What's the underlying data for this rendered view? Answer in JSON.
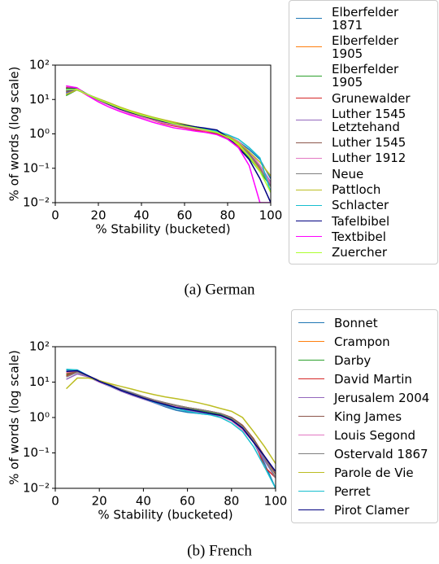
{
  "chart_data": [
    {
      "type": "line",
      "caption": "(a) German",
      "x_label": "% Stability (bucketed)",
      "y_label": "% of words (log scale)",
      "log_y": true,
      "xlim": [
        0,
        100
      ],
      "ylim": [
        0.01,
        100
      ],
      "xticks": [
        0,
        20,
        40,
        60,
        80,
        100
      ],
      "yticks": [
        {
          "value": 0.01,
          "label": "10⁻²"
        },
        {
          "value": 0.1,
          "label": "10⁻¹"
        },
        {
          "value": 1,
          "label": "10⁰"
        },
        {
          "value": 10,
          "label": "10¹"
        },
        {
          "value": 100,
          "label": "10²"
        }
      ],
      "x": [
        5,
        10,
        15,
        20,
        25,
        30,
        35,
        40,
        45,
        50,
        55,
        60,
        65,
        70,
        75,
        80,
        85,
        90,
        95,
        100
      ],
      "series": [
        {
          "name": "Elberfelder 1871",
          "color": "#1f77b4",
          "values": [
            16,
            20,
            14,
            10,
            7.8,
            5.8,
            4.5,
            3.6,
            3.0,
            2.5,
            2.1,
            1.8,
            1.6,
            1.4,
            1.2,
            0.9,
            0.6,
            0.35,
            0.18,
            0.05
          ]
        },
        {
          "name": "Elberfelder 1905",
          "color": "#ff7f0e",
          "values": [
            18,
            20,
            13,
            9.5,
            7,
            5.2,
            4,
            3.2,
            2.6,
            2.1,
            1.8,
            1.6,
            1.4,
            1.2,
            1.0,
            0.75,
            0.45,
            0.22,
            0.09,
            0.04
          ]
        },
        {
          "name": "Elberfelder 1905",
          "color": "#2ca02c",
          "values": [
            13,
            19,
            14,
            10,
            7.6,
            5.6,
            4.4,
            3.5,
            2.9,
            2.4,
            2.0,
            1.7,
            1.5,
            1.3,
            1.0,
            0.7,
            0.4,
            0.2,
            0.08,
            0.03
          ]
        },
        {
          "name": "Grunewalder",
          "color": "#d62728",
          "values": [
            22,
            21,
            14,
            9.5,
            7,
            5,
            3.9,
            3.1,
            2.5,
            2.0,
            1.7,
            1.5,
            1.3,
            1.1,
            1.0,
            0.8,
            0.55,
            0.3,
            0.12,
            0.03
          ]
        },
        {
          "name": "Luther 1545 Letztehand",
          "color": "#9467bd",
          "values": [
            15,
            19,
            14,
            10.5,
            8,
            6,
            4.6,
            3.7,
            3.0,
            2.5,
            2.1,
            1.8,
            1.6,
            1.4,
            1.2,
            0.9,
            0.6,
            0.3,
            0.12,
            0.04
          ]
        },
        {
          "name": "Luther 1545",
          "color": "#8c564b",
          "values": [
            17,
            20,
            14,
            10,
            7.7,
            5.7,
            4.5,
            3.6,
            2.9,
            2.4,
            2.1,
            1.8,
            1.6,
            1.4,
            1.2,
            0.85,
            0.55,
            0.28,
            0.11,
            0.03
          ]
        },
        {
          "name": "Luther 1912",
          "color": "#e377c2",
          "values": [
            24,
            22,
            14,
            9.5,
            6.8,
            5,
            3.8,
            3.1,
            2.5,
            2.1,
            1.8,
            1.6,
            1.4,
            1.25,
            1.1,
            0.9,
            0.6,
            0.3,
            0.12,
            0.035
          ]
        },
        {
          "name": "Neue",
          "color": "#7f7f7f",
          "values": [
            20,
            20,
            14,
            10,
            7.3,
            5.4,
            4.2,
            3.4,
            2.8,
            2.3,
            1.95,
            1.7,
            1.5,
            1.3,
            1.1,
            0.8,
            0.5,
            0.25,
            0.1,
            0.03
          ]
        },
        {
          "name": "Pattloch",
          "color": "#bcbd22",
          "values": [
            14,
            19,
            14,
            10.5,
            8,
            6,
            4.7,
            3.8,
            3.1,
            2.6,
            2.2,
            1.9,
            1.6,
            1.4,
            1.2,
            0.9,
            0.55,
            0.3,
            0.15,
            0.06
          ]
        },
        {
          "name": "Schlacter",
          "color": "#17becf",
          "values": [
            19,
            20,
            14,
            10,
            7.5,
            5.5,
            4.3,
            3.5,
            2.9,
            2.4,
            2.0,
            1.8,
            1.6,
            1.4,
            1.2,
            0.95,
            0.7,
            0.4,
            0.2,
            0.02
          ]
        },
        {
          "name": "Tafelbibel",
          "color": "#000080",
          "values": [
            21,
            21,
            14,
            9.8,
            7.2,
            5.3,
            4.2,
            3.4,
            2.8,
            2.3,
            2.0,
            1.8,
            1.6,
            1.45,
            1.3,
            0.8,
            0.4,
            0.18,
            0.05,
            0.01
          ]
        },
        {
          "name": "Textbibel",
          "color": "#ff00ff",
          "values": [
            25,
            22,
            13,
            8.5,
            6,
            4.5,
            3.5,
            2.8,
            2.2,
            1.8,
            1.5,
            1.35,
            1.2,
            1.1,
            0.95,
            0.7,
            0.4,
            0.12,
            0.01,
            0.01
          ]
        },
        {
          "name": "Zuercher",
          "color": "#adff2f",
          "values": [
            20,
            20,
            14,
            10,
            7.5,
            5.6,
            4.4,
            3.5,
            2.9,
            2.4,
            2.0,
            1.7,
            1.5,
            1.3,
            1.1,
            0.8,
            0.5,
            0.22,
            0.08,
            0.02
          ]
        }
      ]
    },
    {
      "type": "line",
      "caption": "(b) French",
      "x_label": "% Stability (bucketed)",
      "y_label": "% of words (log scale)",
      "log_y": true,
      "xlim": [
        0,
        100
      ],
      "ylim": [
        0.01,
        100
      ],
      "xticks": [
        0,
        20,
        40,
        60,
        80,
        100
      ],
      "yticks": [
        {
          "value": 0.01,
          "label": "10⁻²"
        },
        {
          "value": 0.1,
          "label": "10⁻¹"
        },
        {
          "value": 1,
          "label": "10⁰"
        },
        {
          "value": 10,
          "label": "10¹"
        },
        {
          "value": 100,
          "label": "10²"
        }
      ],
      "x": [
        5,
        10,
        15,
        20,
        25,
        30,
        35,
        40,
        45,
        50,
        55,
        60,
        65,
        70,
        75,
        80,
        85,
        90,
        95,
        100
      ],
      "series": [
        {
          "name": "Bonnet",
          "color": "#1f77b4",
          "values": [
            22,
            22,
            15,
            10,
            7.5,
            5.5,
            4.3,
            3.4,
            2.6,
            2.0,
            1.6,
            1.4,
            1.3,
            1.2,
            1.1,
            0.9,
            0.55,
            0.2,
            0.05,
            0.01
          ]
        },
        {
          "name": "Crampon",
          "color": "#ff7f0e",
          "values": [
            18,
            20,
            15,
            11,
            8.2,
            6.2,
            4.9,
            3.9,
            3.1,
            2.6,
            2.2,
            1.9,
            1.7,
            1.5,
            1.3,
            1.0,
            0.6,
            0.25,
            0.07,
            0.02
          ]
        },
        {
          "name": "Darby",
          "color": "#2ca02c",
          "values": [
            16,
            20,
            15,
            10.5,
            8,
            6,
            4.7,
            3.7,
            3,
            2.5,
            2.1,
            1.8,
            1.6,
            1.4,
            1.2,
            0.9,
            0.5,
            0.22,
            0.07,
            0.02
          ]
        },
        {
          "name": "David Martin",
          "color": "#d62728",
          "values": [
            15,
            19,
            15,
            11,
            8.3,
            6.2,
            4.8,
            3.8,
            3.1,
            2.6,
            2.2,
            1.9,
            1.7,
            1.5,
            1.3,
            1.0,
            0.6,
            0.25,
            0.04,
            0.02
          ]
        },
        {
          "name": "Jerusalem 2004",
          "color": "#9467bd",
          "values": [
            12,
            17,
            14,
            10,
            7.5,
            5.5,
            4.2,
            3.3,
            2.6,
            2.1,
            1.8,
            1.6,
            1.4,
            1.3,
            1.1,
            0.85,
            0.5,
            0.2,
            0.06,
            0.02
          ]
        },
        {
          "name": "King James",
          "color": "#8c564b",
          "values": [
            17,
            20,
            15,
            10.5,
            8,
            6,
            4.7,
            3.7,
            3,
            2.5,
            2.2,
            1.9,
            1.7,
            1.5,
            1.3,
            1.0,
            0.6,
            0.25,
            0.08,
            0.025
          ]
        },
        {
          "name": "Louis Segond",
          "color": "#e377c2",
          "values": [
            19,
            21,
            15,
            10,
            7.6,
            5.7,
            4.5,
            3.5,
            2.8,
            2.3,
            2.0,
            1.7,
            1.5,
            1.3,
            1.1,
            0.8,
            0.45,
            0.2,
            0.07,
            0.02
          ]
        },
        {
          "name": "Ostervald 1867",
          "color": "#7f7f7f",
          "values": [
            14,
            19,
            15,
            11,
            8.3,
            6.3,
            5,
            3.9,
            3.1,
            2.6,
            2.2,
            1.9,
            1.7,
            1.5,
            1.3,
            0.95,
            0.55,
            0.22,
            0.07,
            0.02
          ]
        },
        {
          "name": "Parole de Vie",
          "color": "#bcbd22",
          "values": [
            6.5,
            13,
            13,
            11,
            9,
            7.5,
            6.3,
            5.2,
            4.4,
            3.8,
            3.4,
            3.0,
            2.6,
            2.2,
            1.8,
            1.5,
            1.0,
            0.4,
            0.15,
            0.05
          ]
        },
        {
          "name": "Perret",
          "color": "#17becf",
          "values": [
            23,
            22,
            15,
            10.5,
            7.8,
            5.8,
            4.5,
            3.5,
            2.7,
            2.2,
            1.8,
            1.5,
            1.3,
            1.2,
            1.0,
            0.7,
            0.4,
            0.15,
            0.04,
            0.01
          ]
        },
        {
          "name": "Pirot Clamer",
          "color": "#000080",
          "values": [
            20,
            21,
            15,
            10.5,
            8,
            5.8,
            4.5,
            3.5,
            2.8,
            2.3,
            1.9,
            1.7,
            1.5,
            1.3,
            1.15,
            0.85,
            0.5,
            0.2,
            0.08,
            0.03
          ]
        }
      ]
    }
  ]
}
